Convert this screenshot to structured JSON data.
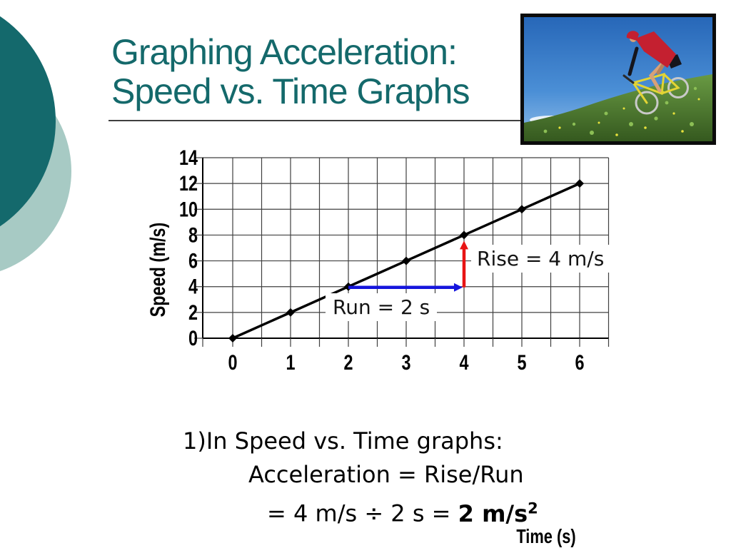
{
  "title": {
    "line1": "Graphing Acceleration:",
    "line2": "Speed vs. Time Graphs"
  },
  "colors": {
    "accent_teal": "#14696b",
    "decor_circle_dark": "#14696c",
    "decor_circle_light": "#a7cac4",
    "rise_arrow": "#e81414",
    "run_arrow": "#1515dd",
    "line_series": "#000000",
    "grid": "#404040"
  },
  "chart_data": {
    "type": "line",
    "title": "",
    "xlabel": "Time (s)",
    "ylabel": "Speed (m/s)",
    "x_ticks": [
      0,
      1,
      2,
      3,
      4,
      5,
      6
    ],
    "y_ticks": [
      0,
      2,
      4,
      6,
      8,
      10,
      12,
      14
    ],
    "xlim": [
      -0.5,
      6.5
    ],
    "ylim": [
      0,
      14
    ],
    "grid": {
      "x_interval": 0.5,
      "y_interval": 2,
      "visible": true
    },
    "legend": "none",
    "series": [
      {
        "name": "Speed",
        "x": [
          0,
          1,
          2,
          3,
          4,
          5,
          6
        ],
        "y": [
          0,
          2,
          4,
          6,
          8,
          10,
          12
        ],
        "color": "#000000",
        "marker": "diamond"
      }
    ],
    "annotations": [
      {
        "label": "Rise = 4 m/s",
        "type": "arrow-vertical",
        "x": 4,
        "y_from": 4,
        "y_to": 8,
        "color": "#e81414"
      },
      {
        "label": "Run = 2 s",
        "type": "arrow-horizontal",
        "y": 4,
        "x_from": 2,
        "x_to": 4,
        "color": "#1515dd"
      }
    ]
  },
  "body": {
    "line1": "1)In Speed vs. Time graphs:",
    "line2": "Acceleration = Rise/Run",
    "line3_prefix": "= 4 m/s ÷ 2 s = ",
    "line3_bold": "2 m/s",
    "line3_sup": "2"
  }
}
